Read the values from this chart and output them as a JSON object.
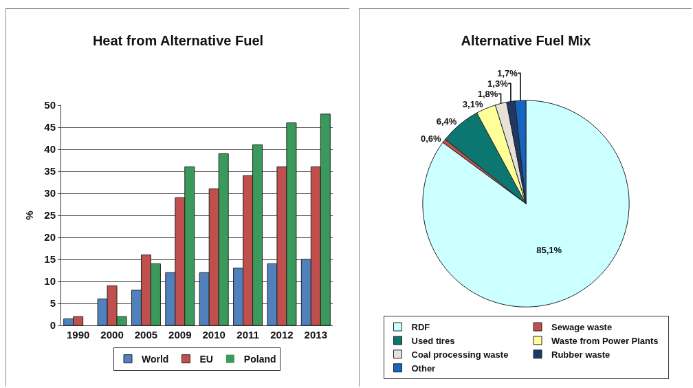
{
  "chart_data": [
    {
      "type": "bar",
      "title": "Heat from Alternative Fuel",
      "ylabel": "%",
      "categories": [
        "1990",
        "2000",
        "2005",
        "2009",
        "2010",
        "2011",
        "2012",
        "2013"
      ],
      "series": [
        {
          "name": "World",
          "color": "#4f81bd",
          "values": [
            1.5,
            6,
            8,
            12,
            12,
            13,
            14,
            15
          ]
        },
        {
          "name": "EU",
          "color": "#c0504d",
          "values": [
            2,
            9,
            16,
            29,
            31,
            34,
            36,
            36
          ]
        },
        {
          "name": "Poland",
          "color": "#3a9a5b",
          "values": [
            0,
            2,
            14,
            36,
            39,
            41,
            46,
            48
          ]
        }
      ],
      "ylim": [
        0,
        50
      ],
      "yticks": [
        0,
        5,
        10,
        15,
        20,
        25,
        30,
        35,
        40,
        45,
        50
      ],
      "grid": "y",
      "legend": "bottom"
    },
    {
      "type": "pie",
      "title": "Alternative Fuel Mix",
      "categories": [
        "RDF",
        "Sewage waste",
        "Used tires",
        "Waste from Power Plants",
        "Coal processing waste",
        "Rubber waste",
        "Other"
      ],
      "values": [
        85.1,
        0.6,
        6.4,
        3.1,
        1.8,
        1.3,
        1.7
      ],
      "colors": [
        "#ccffff",
        "#c0504d",
        "#0b7770",
        "#ffff99",
        "#e6e2da",
        "#1f3864",
        "#1565c0"
      ],
      "value_labels": [
        "85,1%",
        "0,6%",
        "6,4%",
        "3,1%",
        "1,8%",
        "1,3%",
        "1,7%"
      ],
      "legend": "bottom"
    }
  ]
}
